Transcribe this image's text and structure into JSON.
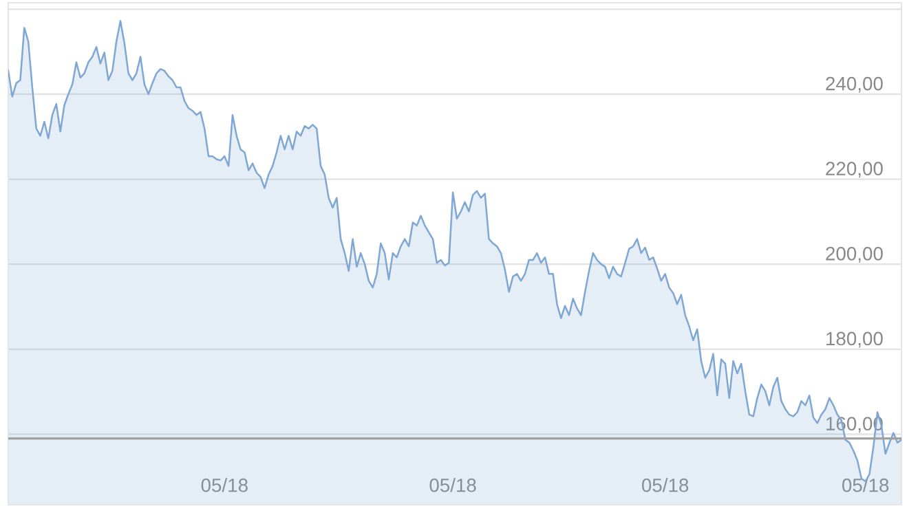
{
  "chart_data": {
    "type": "area",
    "categories": [
      null,
      null,
      null,
      null,
      null,
      null,
      null,
      null,
      null,
      null,
      null,
      null,
      null,
      null,
      null,
      null,
      null,
      null,
      null,
      null,
      null,
      null,
      null,
      null,
      null,
      null,
      null,
      null,
      null,
      null,
      null,
      null,
      null,
      null,
      null,
      null,
      null,
      null,
      null,
      null,
      null,
      null,
      null,
      null,
      null,
      null,
      null,
      null,
      null,
      null,
      null,
      null,
      null,
      null,
      "05/18",
      null,
      null,
      null,
      null,
      null,
      null,
      null,
      null,
      null,
      null,
      null,
      null,
      null,
      null,
      null,
      null,
      null,
      null,
      null,
      null,
      null,
      null,
      null,
      null,
      null,
      null,
      null,
      null,
      null,
      null,
      null,
      null,
      null,
      null,
      null,
      null,
      null,
      null,
      null,
      null,
      null,
      null,
      null,
      null,
      null,
      null,
      null,
      null,
      null,
      null,
      null,
      null,
      null,
      null,
      null,
      null,
      "05/18",
      null,
      null,
      null,
      null,
      null,
      null,
      null,
      null,
      null,
      null,
      null,
      null,
      null,
      null,
      null,
      null,
      null,
      null,
      null,
      null,
      null,
      null,
      null,
      null,
      null,
      null,
      null,
      null,
      null,
      null,
      null,
      null,
      null,
      null,
      null,
      null,
      null,
      null,
      null,
      null,
      null,
      null,
      null,
      null,
      null,
      null,
      null,
      null,
      null,
      null,
      null,
      null,
      "05/18",
      null,
      null,
      null,
      null,
      null,
      null,
      null,
      null,
      null,
      null,
      null,
      null,
      null,
      null,
      null,
      null,
      null,
      null,
      null,
      null,
      null,
      null,
      null,
      null,
      null,
      null,
      null,
      null,
      null,
      null,
      null,
      null,
      null,
      null,
      null,
      null,
      null,
      null,
      null,
      null,
      null,
      null,
      null,
      null,
      null,
      null,
      null,
      null,
      null,
      "05/18",
      null,
      null,
      null,
      null,
      null,
      null,
      null,
      null,
      null
    ],
    "series": [
      {
        "color": "#7ea7d3",
        "values": [
          245.5,
          239.4,
          242.6,
          243.3,
          255.6,
          252.4,
          241.6,
          231.9,
          230.2,
          233.5,
          229.6,
          235.1,
          237.7,
          231.2,
          237.4,
          240,
          242.3,
          247.5,
          243.9,
          244.9,
          247.5,
          248.8,
          251.1,
          247.2,
          249.8,
          243.3,
          245.5,
          252.4,
          257.2,
          252,
          244.9,
          243.3,
          244.9,
          248.8,
          242.3,
          240,
          242.6,
          244.9,
          245.9,
          245.5,
          244.2,
          243.3,
          241.6,
          241.6,
          238.4,
          236.7,
          236.1,
          235.1,
          235.8,
          231.9,
          225.4,
          225.4,
          224.7,
          224.4,
          225.4,
          223.1,
          235.1,
          230.2,
          227,
          226.3,
          222.1,
          223.7,
          221.5,
          220.5,
          217.9,
          221.1,
          223.1,
          226.3,
          230.2,
          227,
          230.2,
          227,
          231.2,
          230.2,
          232.5,
          231.9,
          232.8,
          231.9,
          223.1,
          221.1,
          215.6,
          213.3,
          215.6,
          205.9,
          202.6,
          198.4,
          205.9,
          199.4,
          202.6,
          200,
          196.1,
          194.5,
          197.7,
          204.9,
          202.6,
          196.4,
          202.6,
          201.6,
          204.2,
          205.9,
          204.2,
          209.8,
          209.1,
          211.4,
          209.1,
          207.5,
          205.9,
          200.3,
          201,
          199.7,
          200.3,
          216.9,
          210.7,
          212.4,
          214.6,
          212.4,
          216.3,
          217.2,
          215.6,
          216.6,
          205.9,
          204.9,
          204.2,
          202.6,
          198.7,
          193.5,
          197.1,
          197.7,
          196.1,
          197.7,
          201,
          201,
          202.6,
          200.3,
          201.6,
          197.7,
          197.7,
          190.6,
          187.3,
          190.2,
          188,
          191.9,
          189.6,
          188,
          193.5,
          198.4,
          202.6,
          201,
          200,
          199.4,
          196.7,
          199.4,
          197.7,
          197.1,
          200.3,
          203.6,
          204.2,
          205.9,
          202.6,
          203.9,
          201,
          201.6,
          199,
          196.1,
          197.7,
          194.5,
          193.2,
          190.6,
          192.8,
          188,
          185.4,
          182.1,
          184.7,
          177.2,
          173.3,
          175,
          178.9,
          169.1,
          177.6,
          176.6,
          168.5,
          177.2,
          174.3,
          176.6,
          170.1,
          164.6,
          164.2,
          168.5,
          171.7,
          170.1,
          166.8,
          171.1,
          173.3,
          167.8,
          165.9,
          164.6,
          164.2,
          165.2,
          167.8,
          166.8,
          169.1,
          163.9,
          162.6,
          164.6,
          165.9,
          168.5,
          166.8,
          164.6,
          163.3,
          158.7,
          158,
          156.1,
          153.8,
          149.6,
          148.9,
          150.6,
          157.1,
          165.2,
          162,
          155.4,
          158,
          160.3,
          158,
          158.7
        ]
      }
    ],
    "ylim": [
      143.4,
      261.5
    ],
    "yticks": [
      {
        "value": 160,
        "label": "160,00"
      },
      {
        "value": 180,
        "label": "180,00"
      },
      {
        "value": 200,
        "label": "200,00"
      },
      {
        "value": 220,
        "label": "220,00"
      },
      {
        "value": 240,
        "label": "240,00"
      },
      {
        "value": 260,
        "label": null
      }
    ],
    "grid": "y",
    "ref_lines": [
      {
        "axis": "y",
        "value": 159,
        "color": "#a0a0a0"
      }
    ]
  }
}
